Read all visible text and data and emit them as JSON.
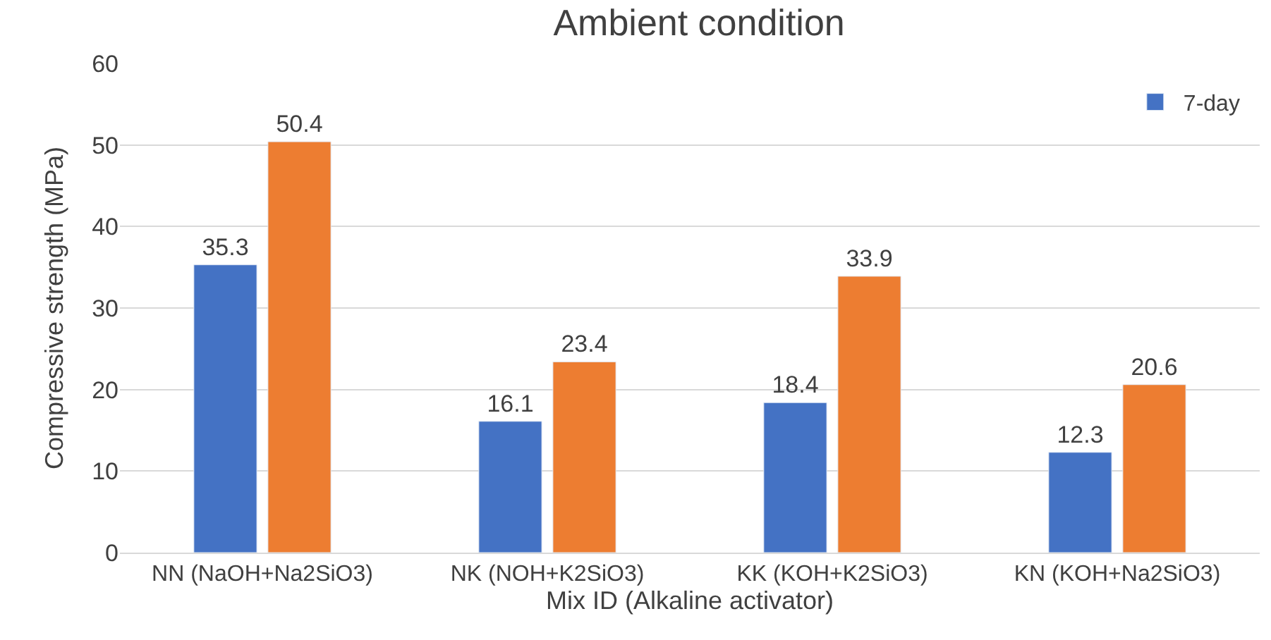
{
  "chart_data": {
    "type": "bar",
    "title": "Ambient condition",
    "xlabel": "Mix ID (Alkaline activator)",
    "ylabel": "Compressive strength (MPa)",
    "categories": [
      "NN (NaOH+Na2SiO3)",
      "NK (NOH+K2SiO3)",
      "KK (KOH+K2SiO3)",
      "KN (KOH+Na2SiO3)"
    ],
    "series": [
      {
        "name": "7-day",
        "color": "#4472c4",
        "values": [
          35.3,
          16.1,
          18.4,
          12.3
        ]
      },
      {
        "color": "#ed7d31",
        "values": [
          50.4,
          23.4,
          33.9,
          20.6
        ]
      }
    ],
    "ylim": [
      0,
      60
    ],
    "yticks": [
      0,
      10,
      20,
      30,
      40,
      50,
      60
    ],
    "grid": "y",
    "legend": "top right",
    "data_labels": true
  }
}
